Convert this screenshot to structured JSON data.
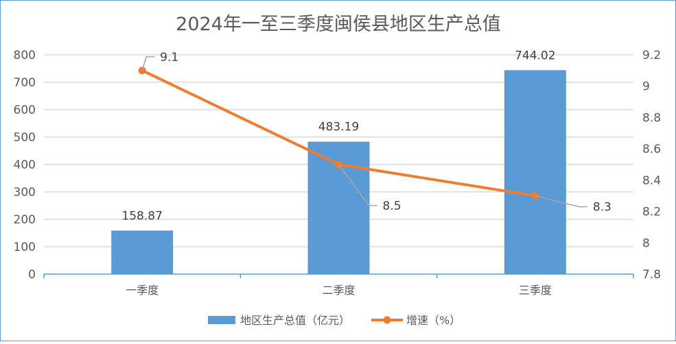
{
  "chart_data": {
    "type": "bar",
    "title": "2024年一至三季度闽侯县地区生产总值",
    "categories": [
      "一季度",
      "二季度",
      "三季度"
    ],
    "series": [
      {
        "name": "地区生产总值（亿元）",
        "type": "bar",
        "axis": "left",
        "color": "#5b9bd5",
        "values": [
          158.87,
          483.19,
          744.02
        ],
        "labels": [
          "158.87",
          "483.19",
          "744.02"
        ]
      },
      {
        "name": "增速（%）",
        "type": "line",
        "axis": "right",
        "color": "#ed7d31",
        "values": [
          9.1,
          8.5,
          8.3
        ],
        "labels": [
          "9.1",
          "8.5",
          "8.3"
        ]
      }
    ],
    "y_left": {
      "min": 0,
      "max": 800,
      "ticks": [
        "0",
        "100",
        "200",
        "300",
        "400",
        "500",
        "600",
        "700",
        "800"
      ]
    },
    "y_right": {
      "min": 7.8,
      "max": 9.2,
      "ticks": [
        "7.8",
        "8",
        "8.2",
        "8.4",
        "8.6",
        "8.8",
        "9",
        "9.2"
      ]
    },
    "grid": true,
    "legend_position": "bottom"
  }
}
